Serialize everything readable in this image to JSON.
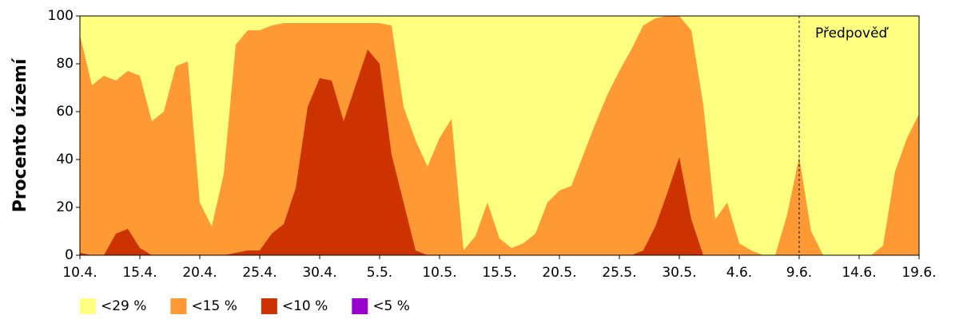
{
  "chart_data": {
    "type": "area",
    "y_label": "Procento území",
    "annotation": {
      "text": "Předpověď",
      "at": "9.6."
    },
    "categories": [
      "10.4.",
      null,
      null,
      null,
      null,
      "15.4.",
      null,
      null,
      null,
      null,
      "20.4.",
      null,
      null,
      null,
      null,
      "25.4.",
      null,
      null,
      null,
      null,
      "30.4.",
      null,
      null,
      null,
      null,
      "5.5.",
      null,
      null,
      null,
      null,
      "10.5.",
      null,
      null,
      null,
      null,
      "15.5.",
      null,
      null,
      null,
      null,
      "20.5.",
      null,
      null,
      null,
      null,
      "25.5.",
      null,
      null,
      null,
      null,
      "30.5.",
      null,
      null,
      null,
      null,
      "4.6.",
      null,
      null,
      null,
      null,
      "9.6.",
      null,
      null,
      null,
      null,
      "14.6.",
      null,
      null,
      null,
      null,
      "19.6."
    ],
    "series": [
      {
        "name": "<29 %",
        "color": "#ffff80",
        "values": [
          100,
          100,
          100,
          100,
          100,
          100,
          100,
          100,
          100,
          100,
          100,
          100,
          100,
          100,
          100,
          100,
          100,
          100,
          100,
          100,
          100,
          100,
          100,
          100,
          100,
          100,
          100,
          100,
          100,
          100,
          100,
          100,
          100,
          100,
          100,
          100,
          100,
          100,
          100,
          100,
          100,
          100,
          100,
          100,
          100,
          100,
          100,
          100,
          100,
          100,
          100,
          100,
          100,
          100,
          100,
          100,
          100,
          100,
          100,
          100,
          100,
          100,
          100,
          100,
          100,
          100,
          100,
          100,
          100,
          100,
          100
        ]
      },
      {
        "name": "<15 %",
        "color": "#ff9933",
        "values": [
          92,
          71,
          75,
          73,
          77,
          75,
          56,
          60,
          79,
          81,
          22,
          12,
          34,
          88,
          94,
          94,
          96,
          97,
          97,
          97,
          97,
          97,
          97,
          97,
          97,
          97,
          96,
          62,
          48,
          37,
          49,
          57,
          2,
          8,
          22,
          7,
          3,
          5,
          9,
          22,
          27,
          29,
          42,
          55,
          67,
          77,
          86,
          96,
          99,
          100,
          100,
          94,
          63,
          15,
          22,
          5,
          2,
          0,
          0,
          17,
          41,
          10,
          0,
          0,
          0,
          0,
          0,
          4,
          35,
          49,
          59
        ]
      },
      {
        "name": "<10 %",
        "color": "#cc3300",
        "values": [
          1,
          0,
          0,
          9,
          11,
          3,
          0,
          0,
          0,
          0,
          0,
          0,
          0,
          1,
          2,
          2,
          9,
          13,
          28,
          62,
          74,
          73,
          56,
          71,
          86,
          80,
          42,
          22,
          2,
          0,
          0,
          0,
          0,
          0,
          0,
          0,
          0,
          0,
          0,
          0,
          0,
          0,
          0,
          0,
          0,
          0,
          0,
          2,
          12,
          26,
          41,
          15,
          0,
          0,
          0,
          0,
          0,
          0,
          0,
          0,
          0,
          0,
          0,
          0,
          0,
          0,
          0,
          0,
          0,
          0,
          0
        ]
      },
      {
        "name": "<5 %",
        "color": "#9900cc",
        "values": [
          0,
          0,
          0,
          0,
          0,
          0,
          0,
          0,
          0,
          0,
          0,
          0,
          0,
          0,
          0,
          0,
          0,
          0,
          0,
          0,
          0,
          0,
          0,
          0,
          0,
          0,
          0,
          0,
          0,
          0,
          0,
          0,
          0,
          0,
          0,
          0,
          0,
          0,
          0,
          0,
          0,
          0,
          0,
          0,
          0,
          0,
          0,
          0,
          0,
          0,
          0,
          0,
          0,
          0,
          0,
          0,
          0,
          0,
          0,
          0,
          0,
          0,
          0,
          0,
          0,
          0,
          0,
          0,
          0,
          0,
          0
        ]
      }
    ],
    "ylim": [
      0,
      100
    ],
    "yticks": [
      0,
      20,
      40,
      60,
      80,
      100
    ],
    "grid": false,
    "legend": "bottom"
  }
}
